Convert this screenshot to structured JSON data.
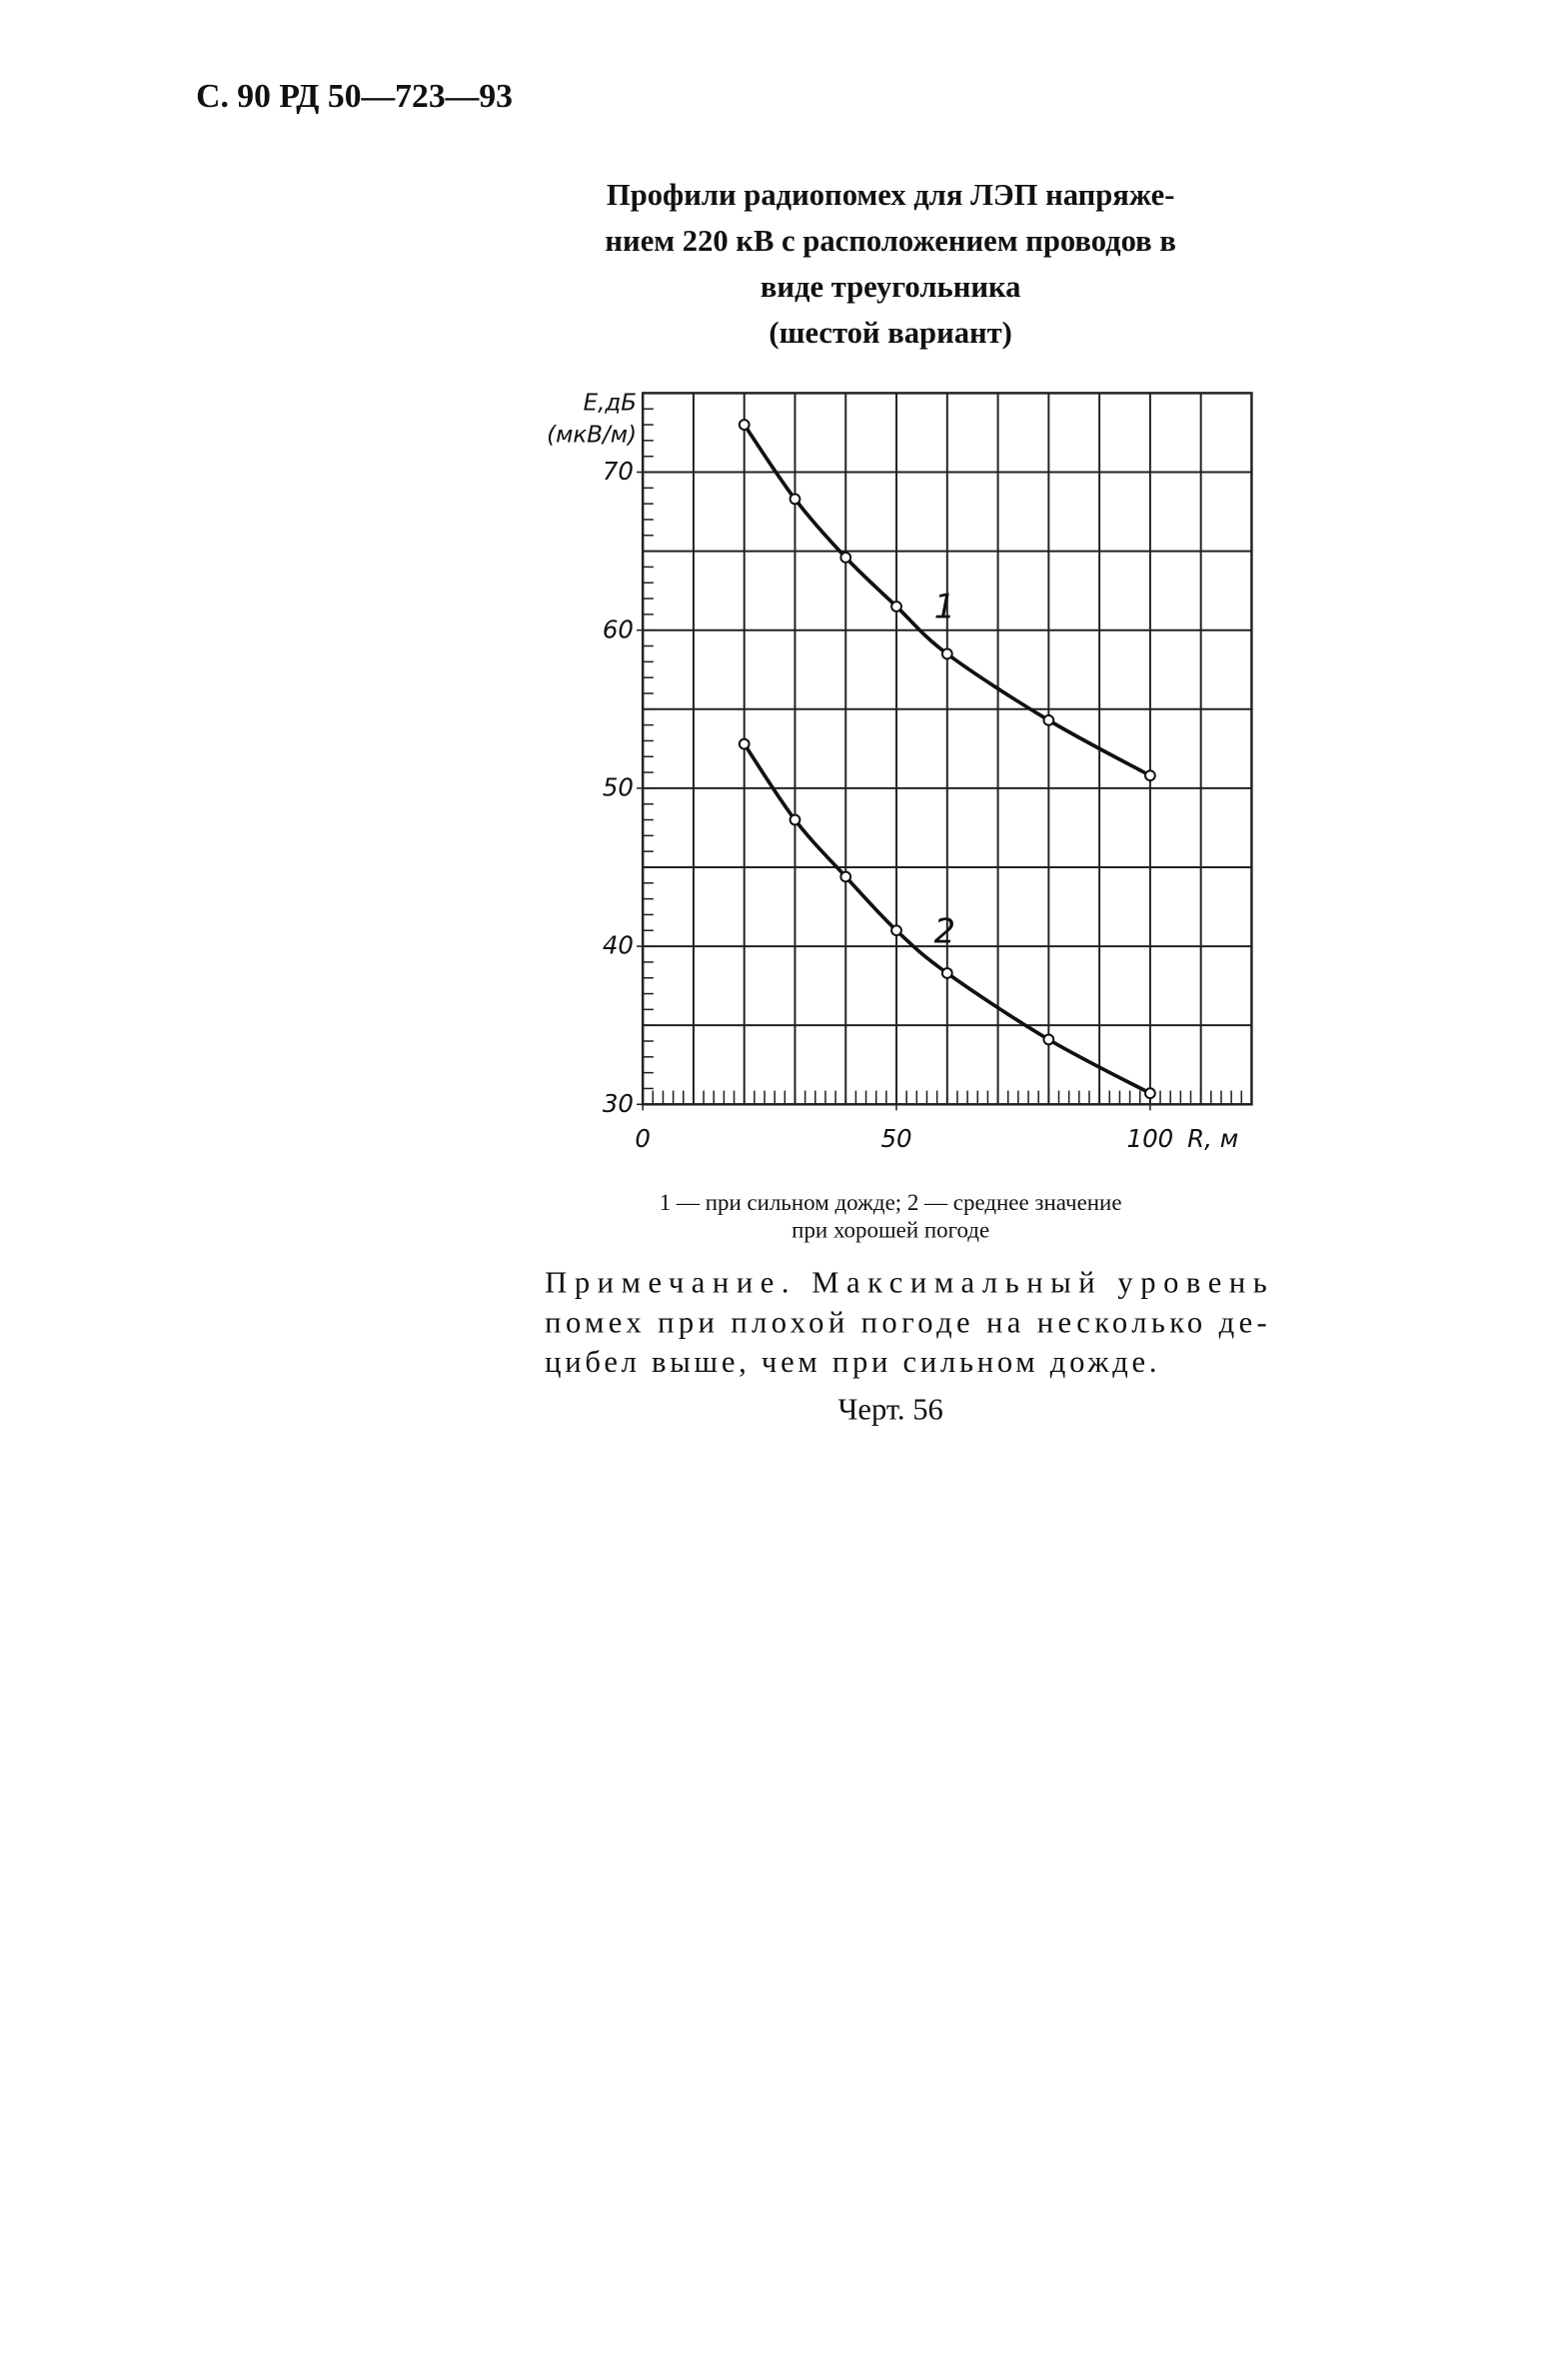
{
  "header": "С. 90 РД 50—723—93",
  "chart_data": {
    "type": "line",
    "title": [
      "Профили радиопомех для ЛЭП напряже-",
      "нием 220 кВ с расположением проводов в",
      "виде треугольника",
      "(шестой вариант)"
    ],
    "y_label": [
      "E,дБ",
      "(мкВ/м)"
    ],
    "x_label": "R, м",
    "xlim": [
      0,
      120
    ],
    "ylim": [
      30,
      75
    ],
    "xticks": [
      0,
      50,
      100
    ],
    "yticks": [
      30,
      40,
      50,
      60,
      70
    ],
    "x_gridlines": [
      0,
      10,
      20,
      30,
      40,
      50,
      60,
      70,
      80,
      90,
      100,
      110,
      120
    ],
    "y_gridlines": [
      30,
      35,
      40,
      45,
      50,
      55,
      60,
      65,
      70,
      75
    ],
    "grid": true,
    "color": "#111111",
    "x": [
      20,
      30,
      40,
      50,
      60,
      80,
      100
    ],
    "series": [
      {
        "name": "1",
        "color": "#111111",
        "values": [
          73,
          68.3,
          64.6,
          61.5,
          58.5,
          54.3,
          50.8
        ]
      },
      {
        "name": "2",
        "color": "#111111",
        "values": [
          52.8,
          48,
          44.4,
          41,
          38.3,
          34.1,
          30.7
        ]
      }
    ]
  },
  "caption": [
    "1 — при сильном дожде; 2 — среднее значение",
    "при хорошей погоде"
  ],
  "note": [
    "Примечание. Максимальный уровень",
    "помех при плохой погоде на несколько де-",
    "цибел выше, чем при сильном дожде."
  ],
  "figure_label": "Черт. 56"
}
